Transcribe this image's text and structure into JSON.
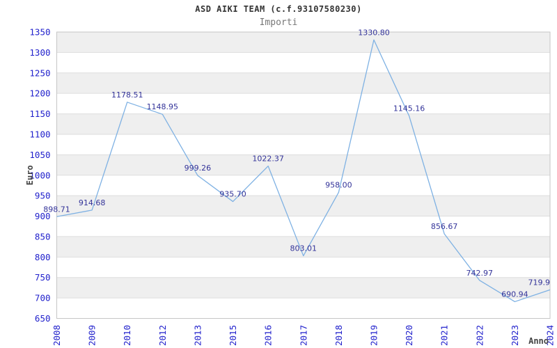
{
  "chart_data": {
    "type": "line",
    "title": "ASD AIKI TEAM (c.f.93107580230)",
    "subtitle": "Importi",
    "xlabel": "Anno",
    "ylabel": "Euro",
    "categories": [
      "2008",
      "2009",
      "2010",
      "2012",
      "2013",
      "2015",
      "2016",
      "2017",
      "2018",
      "2019",
      "2020",
      "2021",
      "2022",
      "2023",
      "2024"
    ],
    "values": [
      898.71,
      914.68,
      1178.51,
      1148.95,
      999.26,
      935.7,
      1022.37,
      803.01,
      958.0,
      1330.8,
      1145.16,
      856.67,
      742.97,
      690.94,
      719.9
    ],
    "point_labels": [
      "898.71",
      "914.68",
      "1178.51",
      "1148.95",
      "999.26",
      "935.70",
      "1022.37",
      "803.01",
      "958.00",
      "1330.80",
      "1145.16",
      "856.67",
      "742.97",
      "690.94",
      "719.9"
    ],
    "yticks": [
      650,
      700,
      750,
      800,
      850,
      900,
      950,
      1000,
      1050,
      1100,
      1150,
      1200,
      1250,
      1300,
      1350
    ],
    "ylim": [
      650,
      1350
    ],
    "grid": "horizontal",
    "band_fill": "alternating, gray band at top (1300-1350)",
    "legend": "none",
    "colors": {
      "line": "#7eb1e3",
      "tick_label": "#2121cc",
      "point_label": "#333399",
      "title": "#333333",
      "subtitle": "#777777",
      "axis_title": "#444444",
      "band": "#efefef",
      "gridline": "#dddddd",
      "border": "#c6c6c6",
      "background": "#ffffff"
    }
  }
}
